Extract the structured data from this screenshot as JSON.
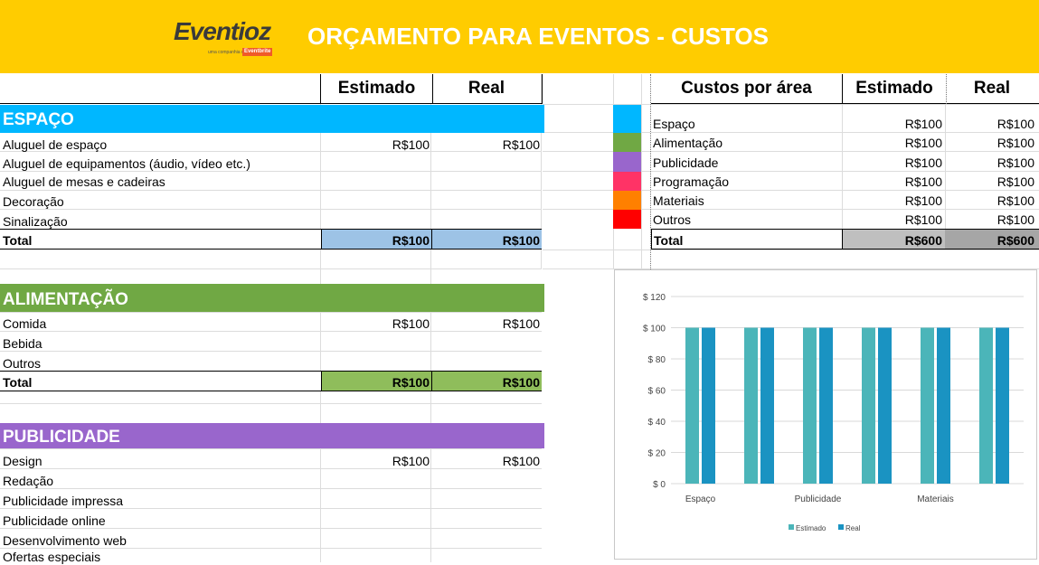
{
  "banner": {
    "logo": "Eventioz",
    "logo_sub": "uma companhia da",
    "logo_badge": "Eventbrite",
    "title": "ORÇAMENTO PARA EVENTOS - CUSTOS"
  },
  "columns": {
    "estimado": "Estimado",
    "real": "Real"
  },
  "sections": [
    {
      "name": "ESPAÇO",
      "color": "#00b7ff",
      "total_color": "#9dc3e6",
      "rows": [
        {
          "label": "Aluguel de espaço",
          "estimado": "R$100",
          "real": "R$100"
        },
        {
          "label": "Aluguel de equipamentos (áudio, vídeo etc.)",
          "estimado": "",
          "real": ""
        },
        {
          "label": "Aluguel de mesas e cadeiras",
          "estimado": "",
          "real": ""
        },
        {
          "label": "Decoração",
          "estimado": "",
          "real": ""
        },
        {
          "label": "Sinalização",
          "estimado": "",
          "real": ""
        }
      ],
      "total": {
        "label": "Total",
        "estimado": "R$100",
        "real": "R$100"
      }
    },
    {
      "name": "ALIMENTAÇÃO",
      "color": "#70a844",
      "total_color": "#8fbd5b",
      "rows": [
        {
          "label": "Comida",
          "estimado": "R$100",
          "real": "R$100"
        },
        {
          "label": "Bebida",
          "estimado": "",
          "real": ""
        },
        {
          "label": "Outros",
          "estimado": "",
          "real": ""
        }
      ],
      "total": {
        "label": "Total",
        "estimado": "R$100",
        "real": "R$100"
      }
    },
    {
      "name": "PUBLICIDADE",
      "color": "#9966cc",
      "rows": [
        {
          "label": "Design",
          "estimado": "R$100",
          "real": "R$100"
        },
        {
          "label": "Redação",
          "estimado": "",
          "real": ""
        },
        {
          "label": "Publicidade impressa",
          "estimado": "",
          "real": ""
        },
        {
          "label": "Publicidade online",
          "estimado": "",
          "real": ""
        },
        {
          "label": "Desenvolvimento web",
          "estimado": "",
          "real": ""
        },
        {
          "label": "Ofertas especiais",
          "estimado": "",
          "real": ""
        }
      ]
    }
  ],
  "summary": {
    "header": "Custos por área",
    "rows": [
      {
        "label": "Espaço",
        "color": "#00b7ff",
        "estimado": "R$100",
        "real": "R$100"
      },
      {
        "label": "Alimentação",
        "color": "#70a844",
        "estimado": "R$100",
        "real": "R$100"
      },
      {
        "label": "Publicidade",
        "color": "#9966cc",
        "estimado": "R$100",
        "real": "R$100"
      },
      {
        "label": "Programação",
        "color": "#ff3366",
        "estimado": "R$100",
        "real": "R$100"
      },
      {
        "label": "Materiais",
        "color": "#ff8000",
        "estimado": "R$100",
        "real": "R$100"
      },
      {
        "label": "Outros",
        "color": "#ff0000",
        "estimado": "R$100",
        "real": "R$100"
      }
    ],
    "total": {
      "label": "Total",
      "estimado": "R$600",
      "real": "R$600"
    }
  },
  "chart_data": {
    "type": "bar",
    "categories": [
      "Espaço",
      "Alimentação",
      "Publicidade",
      "Programação",
      "Materiais",
      "Outros"
    ],
    "category_labels_shown": [
      "Espaço",
      "",
      "Publicidade",
      "",
      "Materiais",
      ""
    ],
    "series": [
      {
        "name": "Estimado",
        "color": "#4bb5b9",
        "values": [
          100,
          100,
          100,
          100,
          100,
          100
        ]
      },
      {
        "name": "Real",
        "color": "#1a93c2",
        "values": [
          100,
          100,
          100,
          100,
          100,
          100
        ]
      }
    ],
    "ylim": [
      0,
      120
    ],
    "yticks": [
      0,
      20,
      40,
      60,
      80,
      100,
      120
    ],
    "ytick_labels": [
      "$ 0",
      "$ 20",
      "$ 40",
      "$ 60",
      "$ 80",
      "$ 100",
      "$ 120"
    ],
    "grid": true,
    "legend": "bottom"
  }
}
